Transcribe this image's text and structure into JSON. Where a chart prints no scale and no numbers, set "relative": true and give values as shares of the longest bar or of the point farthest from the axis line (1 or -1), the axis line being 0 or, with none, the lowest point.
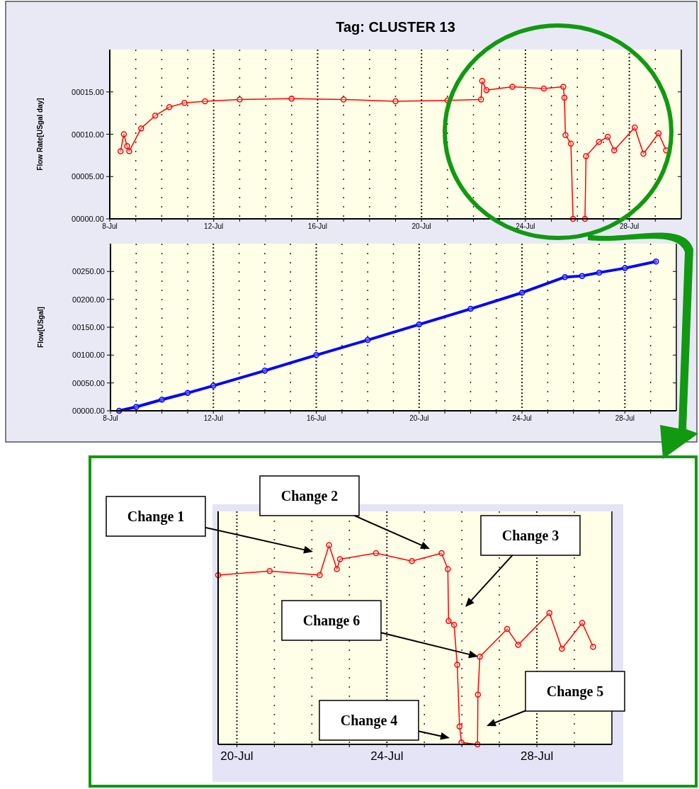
{
  "chart_data": [
    {
      "type": "line",
      "title": "Tag: CLUSTER 13",
      "ylabel": "Flow Rate[USgal day]",
      "xlim": [
        "--07-08",
        "--07-30"
      ],
      "ylim": [
        0,
        20
      ],
      "xticks": [
        {
          "value": "--07-08",
          "label": "8-Jul"
        },
        {
          "value": "--07-09",
          "label": null
        },
        {
          "value": "--07-10",
          "label": null
        },
        {
          "value": "--07-11",
          "label": null
        },
        {
          "value": "--07-12",
          "label": "12-Jul"
        },
        {
          "value": "--07-13",
          "label": null
        },
        {
          "value": "--07-14",
          "label": null
        },
        {
          "value": "--07-15",
          "label": null
        },
        {
          "value": "--07-16",
          "label": "16-Jul"
        },
        {
          "value": "--07-17",
          "label": null
        },
        {
          "value": "--07-18",
          "label": null
        },
        {
          "value": "--07-19",
          "label": null
        },
        {
          "value": "--07-20",
          "label": "20-Jul"
        },
        {
          "value": "--07-21",
          "label": null
        },
        {
          "value": "--07-22",
          "label": null
        },
        {
          "value": "--07-23",
          "label": null
        },
        {
          "value": "--07-24",
          "label": "24-Jul"
        },
        {
          "value": "--07-25",
          "label": null
        },
        {
          "value": "--07-26",
          "label": null
        },
        {
          "value": "--07-27",
          "label": null
        },
        {
          "value": "--07-28",
          "label": "28-Jul"
        },
        {
          "value": "--07-29",
          "label": null
        }
      ],
      "yticks": [
        {
          "value": 0,
          "label": "00000.00"
        },
        {
          "value": 5,
          "label": "00005.00"
        },
        {
          "value": 10,
          "label": "00010.00"
        },
        {
          "value": 15,
          "label": "00015.00"
        }
      ],
      "grid": "x",
      "marker": "circle",
      "x": [
        "--07-08T10:00",
        "--07-08T13:00",
        "--07-08T16:00",
        "--07-08T18:00",
        "--07-09T05:00",
        "--07-09T18:00",
        "--07-10T07:00",
        "--07-10T21:00",
        "--07-11T16:00",
        "--07-13",
        "--07-15",
        "--07-17",
        "--07-19",
        "--07-21",
        "--07-22T07:00",
        "--07-22T08:00",
        "--07-22T12:00",
        "--07-23T12:00",
        "--07-24T17:00",
        "--07-25T11:00",
        "--07-25T12:00",
        "--07-25T13:00",
        "--07-25T18:00",
        "--07-25T20:00",
        "--07-26T07:00",
        "--07-26T08:00",
        "--07-26T20:00",
        "--07-27T04:00",
        "--07-27T10:00",
        "--07-28T05:00",
        "--07-28T13:00",
        "--07-29T03:00",
        "--07-29T10:00"
      ],
      "series": [
        {
          "color": "#ff0000",
          "values": [
            8.0,
            10.0,
            8.6,
            8.0,
            10.7,
            12.2,
            13.2,
            13.7,
            13.9,
            14.1,
            14.2,
            14.1,
            13.9,
            14.0,
            14.1,
            16.3,
            15.2,
            15.6,
            15.4,
            15.6,
            14.3,
            9.9,
            8.9,
            0,
            0,
            7.4,
            9.1,
            9.7,
            8.1,
            10.8,
            7.7,
            10.1,
            8.1
          ]
        }
      ]
    },
    {
      "type": "line",
      "ylabel": "Flow[USgal]",
      "xlim": [
        "--07-08",
        "--07-30"
      ],
      "ylim": [
        0,
        300
      ],
      "xticks": [
        {
          "value": "--07-08",
          "label": "8-Jul"
        },
        {
          "value": "--07-09",
          "label": null
        },
        {
          "value": "--07-10",
          "label": null
        },
        {
          "value": "--07-11",
          "label": null
        },
        {
          "value": "--07-12",
          "label": "12-Jul"
        },
        {
          "value": "--07-13",
          "label": null
        },
        {
          "value": "--07-14",
          "label": null
        },
        {
          "value": "--07-15",
          "label": null
        },
        {
          "value": "--07-16",
          "label": "16-Jul"
        },
        {
          "value": "--07-17",
          "label": null
        },
        {
          "value": "--07-18",
          "label": null
        },
        {
          "value": "--07-19",
          "label": null
        },
        {
          "value": "--07-20",
          "label": "20-Jul"
        },
        {
          "value": "--07-21",
          "label": null
        },
        {
          "value": "--07-22",
          "label": null
        },
        {
          "value": "--07-23",
          "label": null
        },
        {
          "value": "--07-24",
          "label": "24-Jul"
        },
        {
          "value": "--07-25",
          "label": null
        },
        {
          "value": "--07-26",
          "label": null
        },
        {
          "value": "--07-27",
          "label": null
        },
        {
          "value": "--07-28",
          "label": "28-Jul"
        },
        {
          "value": "--07-29",
          "label": null
        }
      ],
      "yticks": [
        {
          "value": 0,
          "label": "00000.00"
        },
        {
          "value": 50,
          "label": "00050.00"
        },
        {
          "value": 100,
          "label": "00100.00"
        },
        {
          "value": 150,
          "label": "00150.00"
        },
        {
          "value": 200,
          "label": "00200.00"
        },
        {
          "value": 250,
          "label": "00250.00"
        }
      ],
      "grid": "x",
      "marker": "circle",
      "x": [
        "--07-08T08:00",
        "--07-09",
        "--07-10",
        "--07-11",
        "--07-12",
        "--07-14",
        "--07-16",
        "--07-18",
        "--07-20",
        "--07-22",
        "--07-24",
        "--07-25T16:00",
        "--07-26T08:00",
        "--07-27",
        "--07-28",
        "--07-29T05:00"
      ],
      "series": [
        {
          "color": "#0000ff",
          "values": [
            0,
            7,
            20,
            32,
            45,
            72,
            100,
            127,
            155,
            183,
            212,
            240,
            242,
            248,
            256,
            268
          ]
        }
      ]
    },
    {
      "type": "line",
      "xlim": [
        "--07-19T12:00",
        "--07-30"
      ],
      "relative": true,
      "tick_labels": "x",
      "xticks": [
        {
          "value": "--07-20",
          "label": "20-Jul"
        },
        {
          "value": "--07-21",
          "label": null
        },
        {
          "value": "--07-22",
          "label": null
        },
        {
          "value": "--07-23",
          "label": null
        },
        {
          "value": "--07-24",
          "label": "24-Jul"
        },
        {
          "value": "--07-25",
          "label": null
        },
        {
          "value": "--07-26",
          "label": null
        },
        {
          "value": "--07-27",
          "label": null
        },
        {
          "value": "--07-28",
          "label": "28-Jul"
        },
        {
          "value": "--07-29",
          "label": null
        }
      ],
      "grid": "x",
      "marker": "circle",
      "x": [
        "--07-19T12:00",
        "--07-20T21:00",
        "--07-22T05:00",
        "--07-22T11:00",
        "--07-22T16:00",
        "--07-22T18:00",
        "--07-23T17:00",
        "--07-24T16:00",
        "--07-25T11:00",
        "--07-25T15:00",
        "--07-25T15:30",
        "--07-25T19:00",
        "--07-25T21:00",
        "--07-25T22:30",
        "--07-25T23:45",
        "--07-26T10:00",
        "--07-26T10:15",
        "--07-26T11:30",
        "--07-27T05:00",
        "--07-27T12:00",
        "--07-28T08:00",
        "--07-28T16:00",
        "--07-29T05:00",
        "--07-29T12:00"
      ],
      "series": [
        {
          "color": "#ff0000",
          "values": [
            0.85,
            0.87,
            0.85,
            1,
            0.88,
            0.93,
            0.96,
            0.92,
            0.96,
            0.88,
            0.62,
            0.6,
            0.4,
            0.09,
            0.01,
            0,
            0.25,
            0.44,
            0.58,
            0.5,
            0.66,
            0.48,
            0.61,
            0.49
          ]
        }
      ],
      "annotations": [
        "Change 1",
        "Change 2",
        "Change 3",
        "Change 4",
        "Change 5",
        "Change 6"
      ]
    }
  ]
}
